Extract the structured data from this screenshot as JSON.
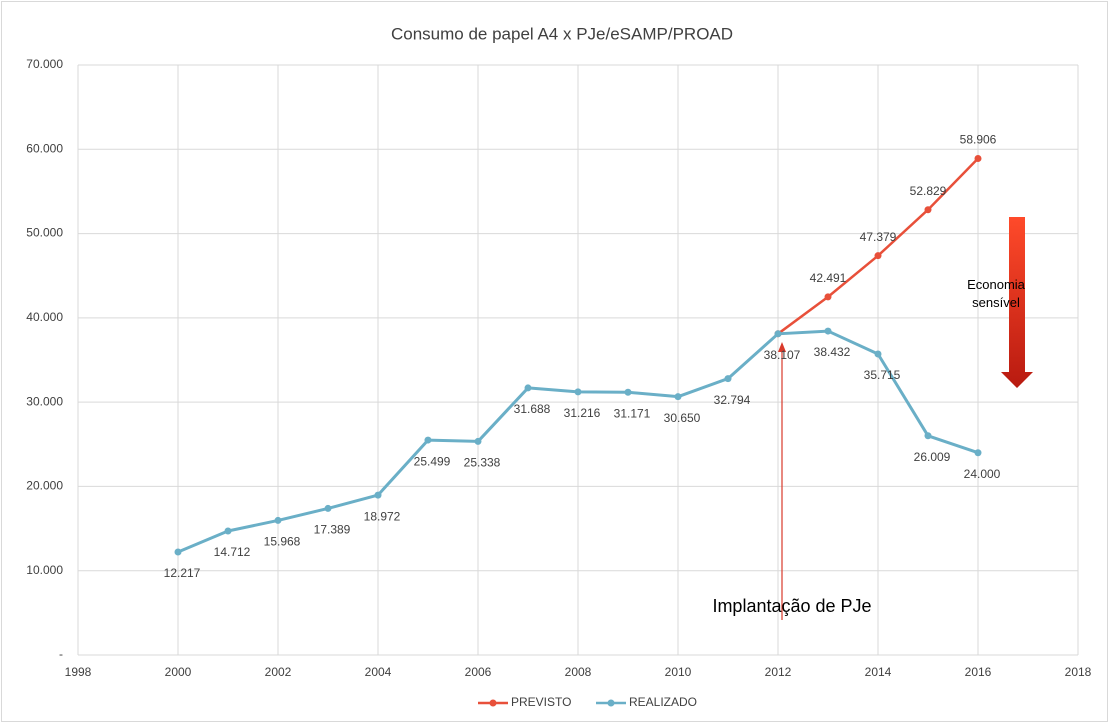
{
  "chart_data": {
    "type": "line",
    "title": "Consumo de papel A4 x PJe/eSAMP/PROAD",
    "xlim": [
      1998,
      2018
    ],
    "xticks": [
      1998,
      2000,
      2002,
      2004,
      2006,
      2008,
      2010,
      2012,
      2014,
      2016,
      2018
    ],
    "ylim": [
      0,
      70000
    ],
    "yticks": [
      {
        "value": 0,
        "label": "-"
      },
      {
        "value": 10000,
        "label": "10.000"
      },
      {
        "value": 20000,
        "label": "20.000"
      },
      {
        "value": 30000,
        "label": "30.000"
      },
      {
        "value": 40000,
        "label": "40.000"
      },
      {
        "value": 50000,
        "label": "50.000"
      },
      {
        "value": 60000,
        "label": "60.000"
      },
      {
        "value": 70000,
        "label": "70.000"
      }
    ],
    "grid": true,
    "legend": "bottom",
    "series": [
      {
        "name": "PREVISTO",
        "color": "#e8503a",
        "x": [
          2012,
          2013,
          2014,
          2015,
          2016
        ],
        "values": [
          38107,
          42491,
          47379,
          52829,
          58906
        ],
        "value_labels": [
          null,
          "42.491",
          "47.379",
          "52.829",
          "58.906"
        ]
      },
      {
        "name": "REALIZADO",
        "color": "#6aafc7",
        "x": [
          2000,
          2001,
          2002,
          2003,
          2004,
          2005,
          2006,
          2007,
          2008,
          2009,
          2010,
          2011,
          2012,
          2013,
          2014,
          2015,
          2016
        ],
        "values": [
          12217,
          14712,
          15968,
          17389,
          18972,
          25499,
          25338,
          31688,
          31216,
          31171,
          30650,
          32794,
          38107,
          38432,
          35715,
          26009,
          24000
        ],
        "value_labels": [
          "12.217",
          "14.712",
          "15.968",
          "17.389",
          "18.972",
          "25.499",
          "25.338",
          "31.688",
          "31.216",
          "31.171",
          "30.650",
          "32.794",
          "38.107",
          "38.432",
          "35.715",
          "26.009",
          "24.000"
        ]
      }
    ],
    "annotations": [
      "Implantação de PJe",
      "Economia sensível"
    ]
  }
}
